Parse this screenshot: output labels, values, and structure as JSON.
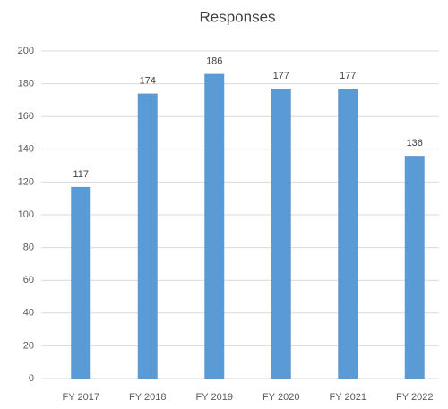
{
  "chart_data": {
    "type": "bar",
    "title": "Responses",
    "categories": [
      "FY 2017",
      "FY 2018",
      "FY 2019",
      "FY 2020",
      "FY 2021",
      "FY 2022"
    ],
    "values": [
      117,
      174,
      186,
      177,
      177,
      136
    ],
    "color": "#5b9bd5",
    "ylim": [
      0,
      200
    ],
    "yticks": [
      0,
      20,
      40,
      60,
      80,
      100,
      120,
      140,
      160,
      180,
      200
    ],
    "grid": true
  }
}
